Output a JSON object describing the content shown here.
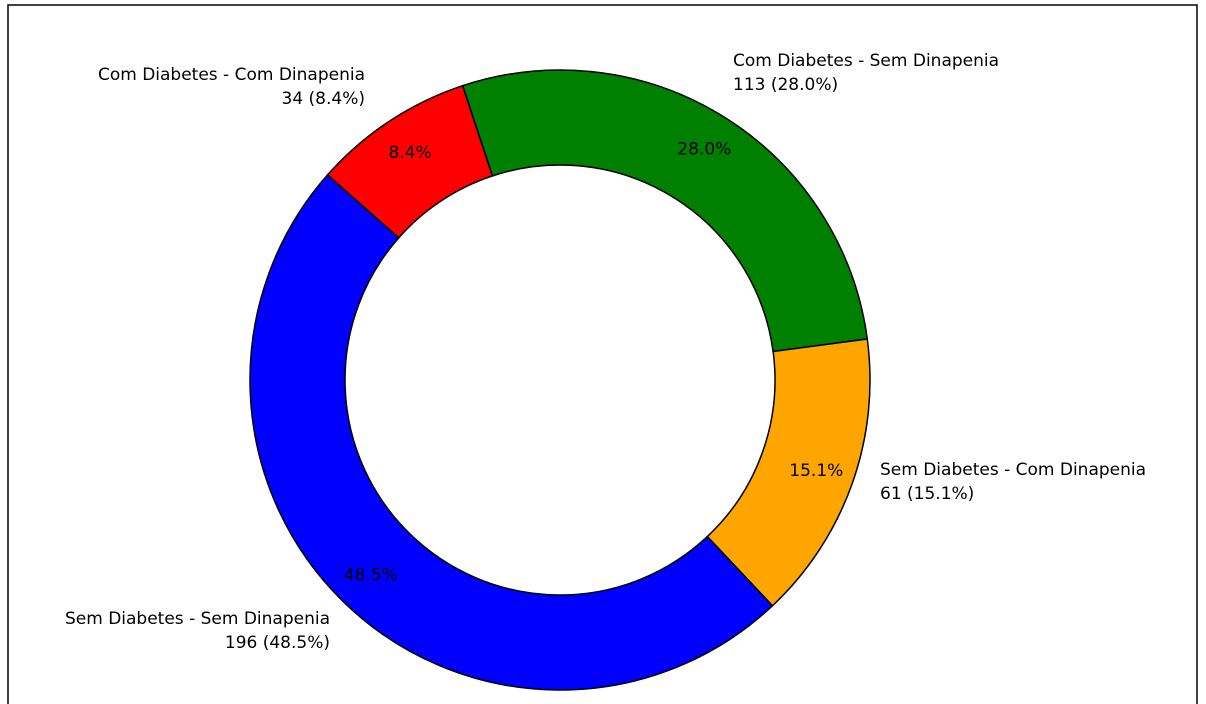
{
  "chart_data": {
    "type": "donut",
    "categories": [
      "Com Diabetes - Com Dinapenia",
      "Com Diabetes - Sem Dinapenia",
      "Sem Diabetes - Com Dinapenia",
      "Sem Diabetes - Sem Dinapenia"
    ],
    "values": [
      34,
      113,
      61,
      196
    ],
    "value_labels": [
      "34 (8.4%)",
      "113 (28.0%)",
      "61 (15.1%)",
      "196 (48.5%)"
    ],
    "percent_labels": [
      "8.4%",
      "28.0%",
      "15.1%",
      "48.5%"
    ],
    "colors": [
      "#ff0000",
      "#008000",
      "#ffa500",
      "#0000ff"
    ]
  }
}
